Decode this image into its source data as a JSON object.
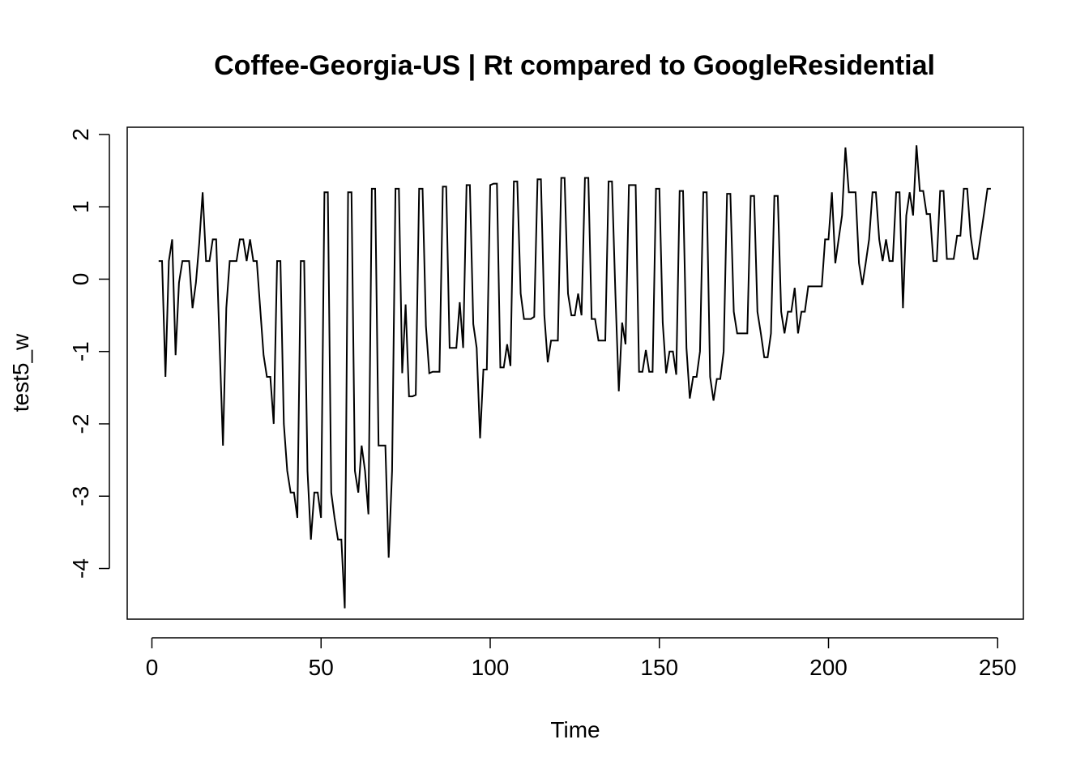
{
  "chart_data": {
    "type": "line",
    "title": "Coffee-Georgia-US | Rt compared to GoogleResidential",
    "xlabel": "Time",
    "ylabel": "test5_w",
    "xlim": [
      -7.3,
      257.6
    ],
    "ylim": [
      -4.7,
      2.1
    ],
    "x_ticks": [
      0,
      50,
      100,
      150,
      200,
      250
    ],
    "y_ticks": [
      -4,
      -3,
      -2,
      -1,
      0,
      1,
      2
    ],
    "grid": false,
    "line_color": "#000000",
    "x_start": 2,
    "values": [
      0.25,
      0.25,
      -1.35,
      0.25,
      0.55,
      -1.05,
      -0.05,
      0.25,
      0.25,
      0.25,
      -0.4,
      -0.05,
      0.5,
      1.2,
      0.25,
      0.25,
      0.55,
      0.55,
      -0.9,
      -2.3,
      -0.4,
      0.25,
      0.25,
      0.25,
      0.55,
      0.55,
      0.25,
      0.55,
      0.25,
      0.25,
      -0.4,
      -1.05,
      -1.35,
      -1.35,
      -2.0,
      0.25,
      0.25,
      -2.0,
      -2.65,
      -2.95,
      -2.95,
      -3.3,
      0.25,
      0.25,
      -2.65,
      -3.6,
      -2.95,
      -2.95,
      -3.3,
      1.2,
      1.2,
      -2.95,
      -3.3,
      -3.6,
      -3.6,
      -4.55,
      1.2,
      1.2,
      -2.65,
      -2.95,
      -2.3,
      -2.65,
      -3.25,
      1.25,
      1.25,
      -2.3,
      -2.3,
      -2.3,
      -3.85,
      -2.65,
      1.25,
      1.25,
      -1.3,
      -0.35,
      -1.62,
      -1.62,
      -1.6,
      1.25,
      1.25,
      -0.65,
      -1.3,
      -1.28,
      -1.28,
      -1.28,
      1.28,
      1.28,
      -0.95,
      -0.95,
      -0.95,
      -0.32,
      -0.95,
      1.3,
      1.3,
      -0.62,
      -0.95,
      -2.2,
      -1.25,
      -1.25,
      1.3,
      1.32,
      1.32,
      -1.22,
      -1.22,
      -0.9,
      -1.2,
      1.35,
      1.35,
      -0.2,
      -0.55,
      -0.55,
      -0.55,
      -0.52,
      1.38,
      1.38,
      -0.5,
      -1.15,
      -0.85,
      -0.85,
      -0.85,
      1.4,
      1.4,
      -0.2,
      -0.5,
      -0.5,
      -0.2,
      -0.5,
      1.4,
      1.4,
      -0.55,
      -0.55,
      -0.85,
      -0.85,
      -0.85,
      1.35,
      1.35,
      -0.2,
      -1.55,
      -0.6,
      -0.9,
      1.3,
      1.3,
      1.3,
      -1.28,
      -1.28,
      -0.98,
      -1.28,
      -1.28,
      1.25,
      1.25,
      -0.6,
      -1.3,
      -1.0,
      -1.0,
      -1.32,
      1.22,
      1.22,
      -0.95,
      -1.65,
      -1.35,
      -1.35,
      -1.0,
      1.2,
      1.2,
      -1.35,
      -1.68,
      -1.38,
      -1.38,
      -1.0,
      1.18,
      1.18,
      -0.45,
      -0.75,
      -0.75,
      -0.75,
      -0.75,
      1.15,
      1.15,
      -0.45,
      -0.75,
      -1.08,
      -1.08,
      -0.75,
      1.15,
      1.15,
      -0.45,
      -0.75,
      -0.45,
      -0.45,
      -0.12,
      -0.75,
      -0.45,
      -0.45,
      -0.1,
      -0.1,
      -0.1,
      -0.1,
      -0.1,
      0.55,
      0.55,
      1.2,
      0.22,
      0.55,
      0.88,
      1.82,
      1.2,
      1.2,
      1.2,
      0.22,
      -0.08,
      0.22,
      0.55,
      1.2,
      1.2,
      0.55,
      0.25,
      0.55,
      0.25,
      0.25,
      1.2,
      1.2,
      -0.4,
      0.88,
      1.2,
      0.88,
      1.85,
      1.22,
      1.22,
      0.9,
      0.9,
      0.25,
      0.25,
      1.22,
      1.22,
      0.28,
      0.28,
      0.28,
      0.6,
      0.6,
      1.25,
      1.25,
      0.6,
      0.28,
      0.28,
      0.6,
      0.92,
      1.25,
      1.25
    ]
  }
}
